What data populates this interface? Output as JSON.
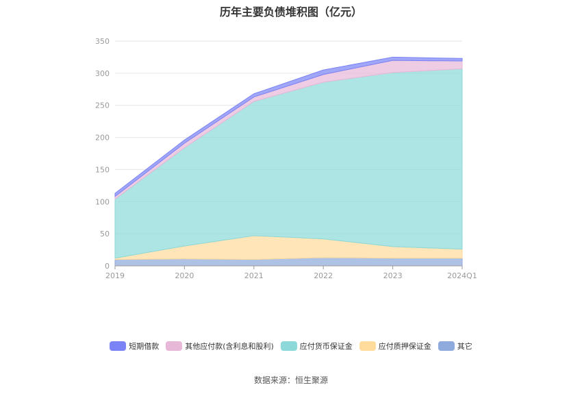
{
  "chart_data": {
    "type": "area",
    "title": "历年主要负债堆积图（亿元）",
    "categories": [
      "2019",
      "2020",
      "2021",
      "2022",
      "2023",
      "2024Q1"
    ],
    "ylim": [
      0,
      350
    ],
    "yticks": [
      "0",
      "50",
      "100",
      "150",
      "200",
      "250",
      "300",
      "350"
    ],
    "stacked": true,
    "grid": true,
    "legend_position": "bottom",
    "series": [
      {
        "name": "其它",
        "color": "#8faadc",
        "values": [
          10,
          11,
          10,
          13,
          12,
          12
        ]
      },
      {
        "name": "应付质押保证金",
        "color": "#ffdb9c",
        "values": [
          2,
          20,
          37,
          29,
          18,
          14
        ]
      },
      {
        "name": "应付货币保证金",
        "color": "#8dd9d9",
        "values": [
          92,
          153,
          209,
          244,
          271,
          281
        ]
      },
      {
        "name": "其他应付款(含利息和股利)",
        "color": "#e8b8d8",
        "values": [
          4,
          7,
          7,
          12,
          19,
          12
        ]
      },
      {
        "name": "短期借款",
        "color": "#7b83f5",
        "values": [
          5,
          5,
          5,
          7,
          5,
          4
        ]
      }
    ]
  },
  "source": "数据来源：恒生聚源"
}
